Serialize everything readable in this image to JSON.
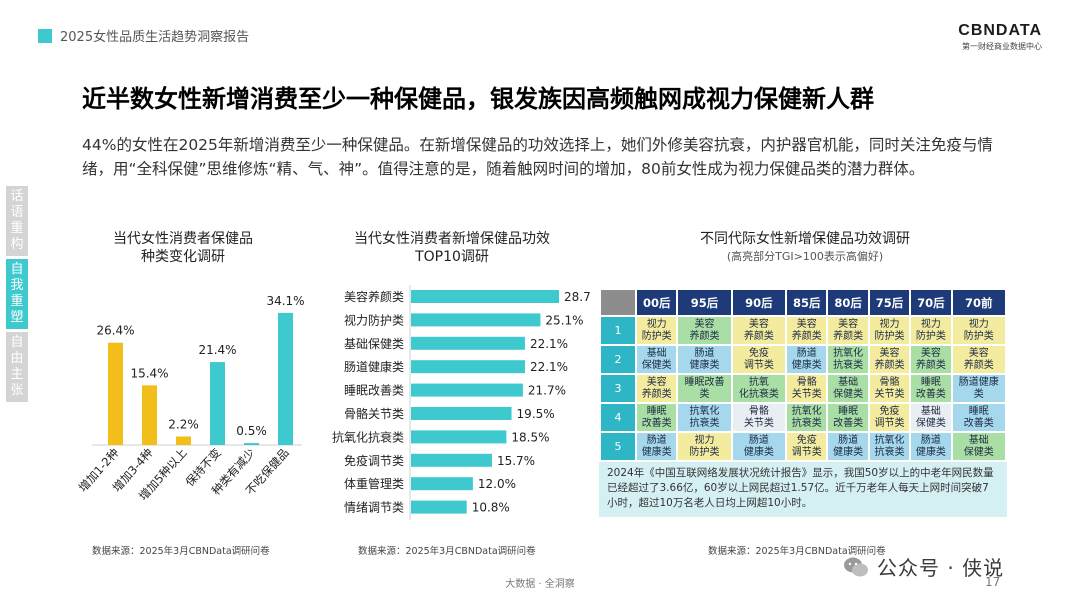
{
  "header": {
    "report_title": "2025女性品质生活趋势洞察报告",
    "logo_main": "CBNDATA",
    "logo_sub": "第一财经商业数据中心"
  },
  "headline": "近半数女性新增消费至少一种保健品，银发族因高频触网成视力保健新人群",
  "body_text": "44%的女性在2025年新增消费至少一种保健品。在新增保健品的功效选择上，她们外修美容抗衰，内护器官机能，同时关注免疫与情绪，用“全科保健”思维修炼“精、气、神”。值得注意的是，随着触网时间的增加，80前女性成为视力保健品类的潜力群体。",
  "side_tabs": [
    "话语重构",
    "自我重塑",
    "自由主张"
  ],
  "colors": {
    "accent": "#3ec9cf",
    "yellow": "#f2bf1a",
    "table_header": "#1e3a78"
  },
  "panel1": {
    "title_line1": "当代女性消费者保健品",
    "title_line2": "种类变化调研",
    "source": "数据来源：2025年3月CBNData调研问卷"
  },
  "panel2": {
    "title_line1": "当代女性消费者新增保健品功效",
    "title_line2": "TOP10调研",
    "source": "数据来源：2025年3月CBNData调研问卷"
  },
  "panel3": {
    "title": "不同代际女性新增保健品功效调研",
    "subtitle": "(高亮部分TGI>100表示高偏好)",
    "source": "数据来源：2025年3月CBNData调研问卷",
    "columns": [
      "00后",
      "95后",
      "90后",
      "85后",
      "80后",
      "75后",
      "70后",
      "70前"
    ],
    "rows": [
      {
        "rank": "1",
        "cells": [
          {
            "text": "视力\n防护类",
            "color": "y"
          },
          {
            "text": "美容\n养颜类",
            "color": "g"
          },
          {
            "text": "美容\n养颜类",
            "color": "y"
          },
          {
            "text": "美容\n养颜类",
            "color": "y"
          },
          {
            "text": "美容\n养颜类",
            "color": "y"
          },
          {
            "text": "视力\n防护类",
            "color": "y"
          },
          {
            "text": "视力\n防护类",
            "color": "y"
          },
          {
            "text": "视力\n防护类",
            "color": "y"
          }
        ]
      },
      {
        "rank": "2",
        "cells": [
          {
            "text": "基础\n保健类",
            "color": "b"
          },
          {
            "text": "肠道\n健康类",
            "color": "b"
          },
          {
            "text": "免疫\n调节类",
            "color": "y"
          },
          {
            "text": "肠道\n健康类",
            "color": "b"
          },
          {
            "text": "抗氧化\n抗衰类",
            "color": "g"
          },
          {
            "text": "美容\n养颜类",
            "color": "y"
          },
          {
            "text": "美容\n养颜类",
            "color": "g"
          },
          {
            "text": "美容\n养颜类",
            "color": "y"
          }
        ]
      },
      {
        "rank": "3",
        "cells": [
          {
            "text": "美容\n养颜类",
            "color": "y"
          },
          {
            "text": "睡眠改善\n类",
            "color": "g"
          },
          {
            "text": "抗氧\n化抗衰类",
            "color": "g"
          },
          {
            "text": "骨骼\n关节类",
            "color": "y"
          },
          {
            "text": "基础\n保健类",
            "color": "g"
          },
          {
            "text": "骨骼\n关节类",
            "color": "y"
          },
          {
            "text": "睡眠\n改善类",
            "color": "g"
          },
          {
            "text": "肠道健康\n类",
            "color": "b"
          }
        ]
      },
      {
        "rank": "4",
        "cells": [
          {
            "text": "睡眠\n改善类",
            "color": "g"
          },
          {
            "text": "抗氧化\n抗衰类",
            "color": "b"
          },
          {
            "text": "骨骼\n关节类",
            "color": "w"
          },
          {
            "text": "抗氧化\n抗衰类",
            "color": "g"
          },
          {
            "text": "睡眠\n改善类",
            "color": "g"
          },
          {
            "text": "免疫\n调节类",
            "color": "y"
          },
          {
            "text": "基础\n保健类",
            "color": "w"
          },
          {
            "text": "睡眠\n改善类",
            "color": "b"
          }
        ]
      },
      {
        "rank": "5",
        "cells": [
          {
            "text": "肠道\n健康类",
            "color": "b"
          },
          {
            "text": "视力\n防护类",
            "color": "y"
          },
          {
            "text": "肠道\n健康类",
            "color": "b"
          },
          {
            "text": "免疫\n调节类",
            "color": "y"
          },
          {
            "text": "肠道\n健康类",
            "color": "b"
          },
          {
            "text": "抗氧化\n抗衰类",
            "color": "b"
          },
          {
            "text": "肠道\n健康类",
            "color": "b"
          },
          {
            "text": "基础\n保健类",
            "color": "g"
          }
        ]
      }
    ],
    "note": "2024年《中国互联网络发展状况统计报告》显示，我国50岁以上的中老年网民数量已经超过了3.66亿，60岁以上网民超过1.57亿。近千万老年人每天上网时间突破7小时，超过10万名老人日均上网超10小时。"
  },
  "chart_data": [
    {
      "type": "bar",
      "orientation": "vertical",
      "categories": [
        "增加1-2种",
        "增加3-4种",
        "增加5种以上",
        "保持不变",
        "种类有减少",
        "不吃保健品"
      ],
      "values": [
        26.4,
        15.4,
        2.2,
        21.4,
        0.5,
        34.1
      ],
      "value_labels": [
        "26.4%",
        "15.4%",
        "2.2%",
        "21.4%",
        "0.5%",
        "34.1%"
      ],
      "colors": [
        "#f2bf1a",
        "#f2bf1a",
        "#f2bf1a",
        "#3ec9cf",
        "#3ec9cf",
        "#3ec9cf"
      ],
      "ylim": [
        0,
        40
      ],
      "grid": false
    },
    {
      "type": "bar",
      "orientation": "horizontal",
      "categories": [
        "美容养颜类",
        "视力防护类",
        "基础保健类",
        "肠道健康类",
        "睡眠改善类",
        "骨骼关节类",
        "抗氧化抗衰类",
        "免疫调节类",
        "体重管理类",
        "情绪调节类"
      ],
      "values": [
        28.7,
        25.1,
        22.1,
        22.1,
        21.7,
        19.5,
        18.5,
        15.7,
        12.0,
        10.8
      ],
      "value_labels": [
        "28.7%",
        "25.1%",
        "22.1%",
        "22.1%",
        "21.7%",
        "19.5%",
        "18.5%",
        "15.7%",
        "12.0%",
        "10.8%"
      ],
      "color": "#3ec9cf",
      "xlim": [
        0,
        32
      ],
      "grid": false
    }
  ],
  "footer": {
    "center": "大数据 · 全洞察",
    "page": "17",
    "wechat": "公众号 · 侠说"
  }
}
